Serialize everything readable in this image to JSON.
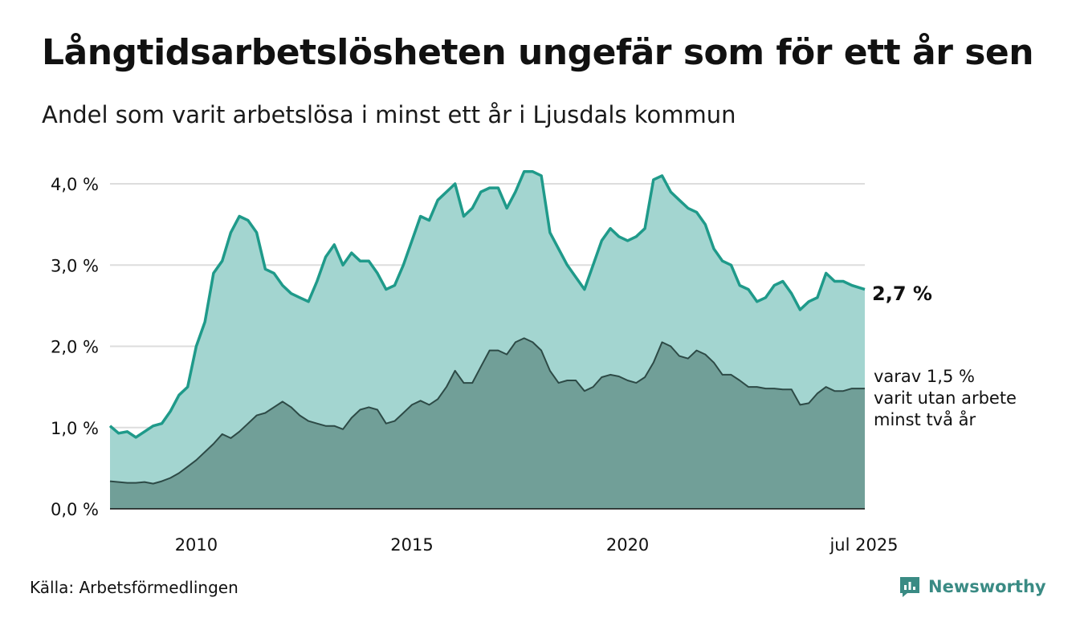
{
  "title": "Långtidsarbetslösheten ungefär som för ett år sen",
  "subtitle": "Andel som varit arbetslösa i minst ett år i Ljusdals kommun",
  "source": "Källa: Arbetsförmedlingen",
  "brand": {
    "name": "Newsworthy",
    "icon": "newsworthy-logo-icon",
    "color": "#3a8b84"
  },
  "chart_data": {
    "type": "area",
    "x_unit": "year",
    "x_range": [
      2008.0,
      2025.5
    ],
    "ylim": [
      0,
      4.2
    ],
    "y_ticks": [
      {
        "value": 0,
        "label": "0,0 %"
      },
      {
        "value": 1,
        "label": "1,0 %"
      },
      {
        "value": 2,
        "label": "2,0 %"
      },
      {
        "value": 3,
        "label": "3,0 %"
      },
      {
        "value": 4,
        "label": "4,0 %"
      }
    ],
    "x_ticks": [
      {
        "value": 2010,
        "label": "2010"
      },
      {
        "value": 2015,
        "label": "2015"
      },
      {
        "value": 2020,
        "label": "2020"
      },
      {
        "value": 2025.5,
        "label": "jul 2025"
      }
    ],
    "grid": true,
    "colors": {
      "total_line": "#1f9a8a",
      "total_fill": "#a3d5d0",
      "sub_line": "#2d4a46",
      "sub_fill": "#719f98",
      "grid": "#dddddd"
    },
    "series": [
      {
        "key": "total",
        "end_label": "2,7 %",
        "points": [
          [
            2008.0,
            1.02
          ],
          [
            2008.2,
            0.93
          ],
          [
            2008.4,
            0.95
          ],
          [
            2008.6,
            0.88
          ],
          [
            2008.8,
            0.95
          ],
          [
            2009.0,
            1.02
          ],
          [
            2009.2,
            1.05
          ],
          [
            2009.4,
            1.2
          ],
          [
            2009.6,
            1.4
          ],
          [
            2009.8,
            1.5
          ],
          [
            2010.0,
            2.0
          ],
          [
            2010.2,
            2.3
          ],
          [
            2010.4,
            2.9
          ],
          [
            2010.6,
            3.05
          ],
          [
            2010.8,
            3.4
          ],
          [
            2011.0,
            3.6
          ],
          [
            2011.2,
            3.55
          ],
          [
            2011.4,
            3.4
          ],
          [
            2011.6,
            2.95
          ],
          [
            2011.8,
            2.9
          ],
          [
            2012.0,
            2.75
          ],
          [
            2012.2,
            2.65
          ],
          [
            2012.4,
            2.6
          ],
          [
            2012.6,
            2.55
          ],
          [
            2012.8,
            2.8
          ],
          [
            2013.0,
            3.1
          ],
          [
            2013.2,
            3.25
          ],
          [
            2013.4,
            3.0
          ],
          [
            2013.6,
            3.15
          ],
          [
            2013.8,
            3.05
          ],
          [
            2014.0,
            3.05
          ],
          [
            2014.2,
            2.9
          ],
          [
            2014.4,
            2.7
          ],
          [
            2014.6,
            2.75
          ],
          [
            2014.8,
            3.0
          ],
          [
            2015.0,
            3.3
          ],
          [
            2015.2,
            3.6
          ],
          [
            2015.4,
            3.55
          ],
          [
            2015.6,
            3.8
          ],
          [
            2015.8,
            3.9
          ],
          [
            2016.0,
            4.0
          ],
          [
            2016.2,
            3.6
          ],
          [
            2016.4,
            3.7
          ],
          [
            2016.6,
            3.9
          ],
          [
            2016.8,
            3.95
          ],
          [
            2017.0,
            3.95
          ],
          [
            2017.2,
            3.7
          ],
          [
            2017.4,
            3.9
          ],
          [
            2017.6,
            4.15
          ],
          [
            2017.8,
            4.15
          ],
          [
            2018.0,
            4.1
          ],
          [
            2018.2,
            3.4
          ],
          [
            2018.4,
            3.2
          ],
          [
            2018.6,
            3.0
          ],
          [
            2018.8,
            2.85
          ],
          [
            2019.0,
            2.7
          ],
          [
            2019.2,
            3.0
          ],
          [
            2019.4,
            3.3
          ],
          [
            2019.6,
            3.45
          ],
          [
            2019.8,
            3.35
          ],
          [
            2020.0,
            3.3
          ],
          [
            2020.2,
            3.35
          ],
          [
            2020.4,
            3.45
          ],
          [
            2020.6,
            4.05
          ],
          [
            2020.8,
            4.1
          ],
          [
            2021.0,
            3.9
          ],
          [
            2021.2,
            3.8
          ],
          [
            2021.4,
            3.7
          ],
          [
            2021.6,
            3.65
          ],
          [
            2021.8,
            3.5
          ],
          [
            2022.0,
            3.2
          ],
          [
            2022.2,
            3.05
          ],
          [
            2022.4,
            3.0
          ],
          [
            2022.6,
            2.75
          ],
          [
            2022.8,
            2.7
          ],
          [
            2023.0,
            2.55
          ],
          [
            2023.2,
            2.6
          ],
          [
            2023.4,
            2.75
          ],
          [
            2023.6,
            2.8
          ],
          [
            2023.8,
            2.65
          ],
          [
            2024.0,
            2.45
          ],
          [
            2024.2,
            2.55
          ],
          [
            2024.4,
            2.6
          ],
          [
            2024.6,
            2.9
          ],
          [
            2024.8,
            2.8
          ],
          [
            2025.0,
            2.8
          ],
          [
            2025.2,
            2.75
          ],
          [
            2025.5,
            2.7
          ]
        ]
      },
      {
        "key": "two_years",
        "note_lines": [
          "varav 1,5 %",
          "varit utan arbete",
          "minst två år"
        ],
        "points": [
          [
            2008.0,
            0.34
          ],
          [
            2008.2,
            0.33
          ],
          [
            2008.4,
            0.32
          ],
          [
            2008.6,
            0.32
          ],
          [
            2008.8,
            0.33
          ],
          [
            2009.0,
            0.31
          ],
          [
            2009.2,
            0.34
          ],
          [
            2009.4,
            0.38
          ],
          [
            2009.6,
            0.44
          ],
          [
            2009.8,
            0.52
          ],
          [
            2010.0,
            0.6
          ],
          [
            2010.2,
            0.7
          ],
          [
            2010.4,
            0.8
          ],
          [
            2010.6,
            0.92
          ],
          [
            2010.8,
            0.87
          ],
          [
            2011.0,
            0.95
          ],
          [
            2011.2,
            1.05
          ],
          [
            2011.4,
            1.15
          ],
          [
            2011.6,
            1.18
          ],
          [
            2011.8,
            1.25
          ],
          [
            2012.0,
            1.32
          ],
          [
            2012.2,
            1.25
          ],
          [
            2012.4,
            1.15
          ],
          [
            2012.6,
            1.08
          ],
          [
            2012.8,
            1.05
          ],
          [
            2013.0,
            1.02
          ],
          [
            2013.2,
            1.02
          ],
          [
            2013.4,
            0.98
          ],
          [
            2013.6,
            1.12
          ],
          [
            2013.8,
            1.22
          ],
          [
            2014.0,
            1.25
          ],
          [
            2014.2,
            1.22
          ],
          [
            2014.4,
            1.05
          ],
          [
            2014.6,
            1.08
          ],
          [
            2014.8,
            1.18
          ],
          [
            2015.0,
            1.28
          ],
          [
            2015.2,
            1.33
          ],
          [
            2015.4,
            1.28
          ],
          [
            2015.6,
            1.35
          ],
          [
            2015.8,
            1.5
          ],
          [
            2016.0,
            1.7
          ],
          [
            2016.2,
            1.55
          ],
          [
            2016.4,
            1.55
          ],
          [
            2016.6,
            1.75
          ],
          [
            2016.8,
            1.95
          ],
          [
            2017.0,
            1.95
          ],
          [
            2017.2,
            1.9
          ],
          [
            2017.4,
            2.05
          ],
          [
            2017.6,
            2.1
          ],
          [
            2017.8,
            2.05
          ],
          [
            2018.0,
            1.95
          ],
          [
            2018.2,
            1.7
          ],
          [
            2018.4,
            1.55
          ],
          [
            2018.6,
            1.58
          ],
          [
            2018.8,
            1.58
          ],
          [
            2019.0,
            1.45
          ],
          [
            2019.2,
            1.5
          ],
          [
            2019.4,
            1.62
          ],
          [
            2019.6,
            1.65
          ],
          [
            2019.8,
            1.63
          ],
          [
            2020.0,
            1.58
          ],
          [
            2020.2,
            1.55
          ],
          [
            2020.4,
            1.62
          ],
          [
            2020.6,
            1.8
          ],
          [
            2020.8,
            2.05
          ],
          [
            2021.0,
            2.0
          ],
          [
            2021.2,
            1.88
          ],
          [
            2021.4,
            1.85
          ],
          [
            2021.6,
            1.95
          ],
          [
            2021.8,
            1.9
          ],
          [
            2022.0,
            1.8
          ],
          [
            2022.2,
            1.65
          ],
          [
            2022.4,
            1.65
          ],
          [
            2022.6,
            1.58
          ],
          [
            2022.8,
            1.5
          ],
          [
            2023.0,
            1.5
          ],
          [
            2023.2,
            1.48
          ],
          [
            2023.4,
            1.48
          ],
          [
            2023.6,
            1.47
          ],
          [
            2023.8,
            1.47
          ],
          [
            2024.0,
            1.28
          ],
          [
            2024.2,
            1.3
          ],
          [
            2024.4,
            1.42
          ],
          [
            2024.6,
            1.5
          ],
          [
            2024.8,
            1.45
          ],
          [
            2025.0,
            1.45
          ],
          [
            2025.2,
            1.48
          ],
          [
            2025.5,
            1.48
          ]
        ]
      }
    ]
  }
}
